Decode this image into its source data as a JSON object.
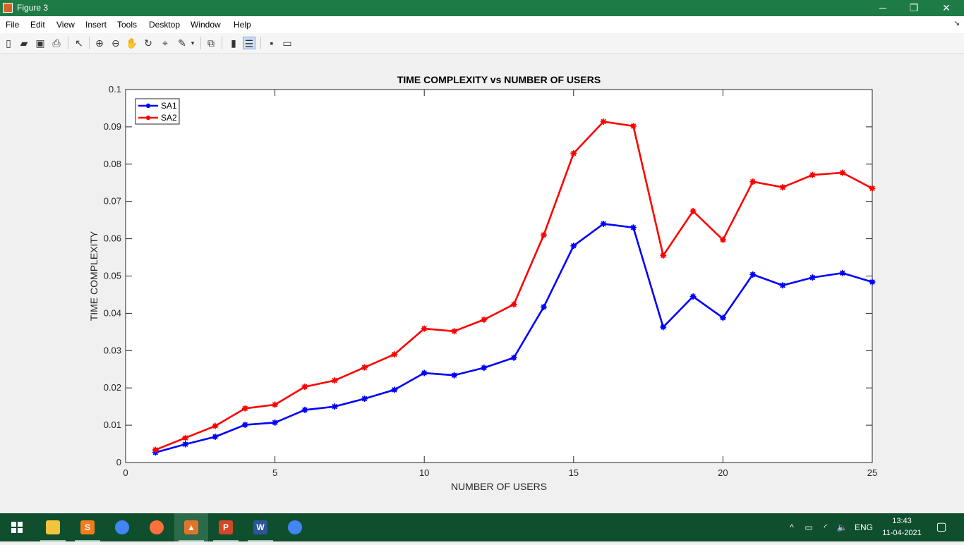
{
  "window": {
    "title": "Figure 3",
    "controls": {
      "minimize": "─",
      "restore": "❐",
      "close": "✕"
    }
  },
  "menu": {
    "items": [
      "File",
      "Edit",
      "View",
      "Insert",
      "Tools",
      "Desktop",
      "Window",
      "Help"
    ],
    "corner_glyph": "↘"
  },
  "toolbar": {
    "icons": [
      "new-figure-icon",
      "open-file-icon",
      "save-icon",
      "print-icon",
      "edit-plot-arrow-icon",
      "zoom-in-icon",
      "zoom-out-icon",
      "pan-hand-icon",
      "rotate-3d-icon",
      "data-cursor-icon",
      "brush-icon",
      "link-plot-icon",
      "insert-colorbar-icon",
      "insert-legend-icon",
      "hide-plot-tools-icon",
      "show-plot-tools-icon"
    ]
  },
  "chart_data": {
    "type": "line",
    "title": "TIME COMPLEXITY vs NUMBER OF USERS",
    "xlabel": "NUMBER OF USERS",
    "ylabel": "TIME COMPLEXITY",
    "xlim": [
      0,
      25
    ],
    "ylim": [
      0,
      0.1
    ],
    "xticks": [
      "0",
      "5",
      "10",
      "15",
      "20",
      "25"
    ],
    "yticks": [
      "0",
      "0.01",
      "0.02",
      "0.03",
      "0.04",
      "0.05",
      "0.06",
      "0.07",
      "0.08",
      "0.09",
      "0.1"
    ],
    "x": [
      1,
      2,
      3,
      4,
      5,
      6,
      7,
      8,
      9,
      10,
      11,
      12,
      13,
      14,
      15,
      16,
      17,
      18,
      19,
      20,
      21,
      22,
      23,
      24,
      25
    ],
    "legend_placement": "top-left",
    "grid": false,
    "series": [
      {
        "name": "SA1",
        "color": "#0000ff",
        "values": [
          0.0027,
          0.0049,
          0.0069,
          0.0101,
          0.0107,
          0.0141,
          0.015,
          0.0171,
          0.0195,
          0.024,
          0.0234,
          0.0254,
          0.0281,
          0.0417,
          0.0581,
          0.064,
          0.063,
          0.0363,
          0.0445,
          0.0388,
          0.0504,
          0.0475,
          0.0496,
          0.0508,
          0.0484
        ]
      },
      {
        "name": "SA2",
        "color": "#ff0000",
        "values": [
          0.0034,
          0.0066,
          0.0098,
          0.0145,
          0.0155,
          0.0203,
          0.022,
          0.0255,
          0.029,
          0.0359,
          0.0352,
          0.0383,
          0.0424,
          0.061,
          0.0829,
          0.0914,
          0.0902,
          0.0555,
          0.0674,
          0.0597,
          0.0753,
          0.0738,
          0.0771,
          0.0777,
          0.0735
        ]
      }
    ]
  },
  "taskbar": {
    "apps": [
      {
        "name": "file-explorer",
        "color": "#f3c33c",
        "glyph": ""
      },
      {
        "name": "sublime-text",
        "color": "#f27c1e",
        "glyph": "S"
      },
      {
        "name": "chrome",
        "color": "#4285f4",
        "glyph": ""
      },
      {
        "name": "firefox",
        "color": "#ff7139",
        "glyph": ""
      },
      {
        "name": "matlab",
        "color": "#e0742b",
        "glyph": "▲"
      },
      {
        "name": "powerpoint",
        "color": "#d24726",
        "glyph": "P"
      },
      {
        "name": "word",
        "color": "#2b579a",
        "glyph": "W"
      },
      {
        "name": "chrome-2",
        "color": "#4285f4",
        "glyph": ""
      }
    ],
    "tray": {
      "chevron": "^",
      "battery": "▭",
      "wifi": "◜",
      "volume": "🔈",
      "language": "ENG"
    },
    "clock": {
      "time": "13:43",
      "date": "11-04-2021"
    },
    "notifications": "▢"
  }
}
